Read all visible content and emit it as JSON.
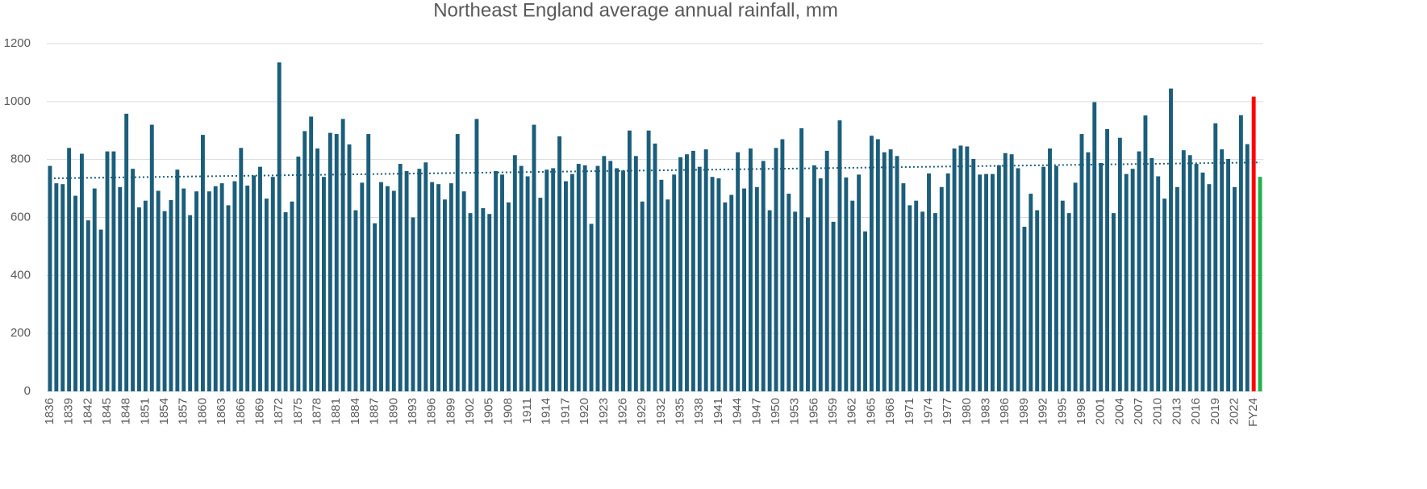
{
  "chart_data": {
    "type": "bar",
    "title": "Northeast England average annual rainfall, mm",
    "categories": [
      "1836",
      null,
      null,
      "1839",
      null,
      null,
      "1842",
      null,
      null,
      "1845",
      null,
      null,
      "1848",
      null,
      null,
      "1851",
      null,
      null,
      "1854",
      null,
      null,
      "1857",
      null,
      null,
      "1860",
      null,
      null,
      "1863",
      null,
      null,
      "1866",
      null,
      null,
      "1869",
      null,
      null,
      "1872",
      null,
      null,
      "1875",
      null,
      null,
      "1878",
      null,
      null,
      "1881",
      null,
      null,
      "1884",
      null,
      null,
      "1887",
      null,
      null,
      "1890",
      null,
      null,
      "1893",
      null,
      null,
      "1896",
      null,
      null,
      "1899",
      null,
      null,
      "1902",
      null,
      null,
      "1905",
      null,
      null,
      "1908",
      null,
      null,
      "1911",
      null,
      null,
      "1914",
      null,
      null,
      "1917",
      null,
      null,
      "1920",
      null,
      null,
      "1923",
      null,
      null,
      "1926",
      null,
      null,
      "1929",
      null,
      null,
      "1932",
      null,
      null,
      "1935",
      null,
      null,
      "1938",
      null,
      null,
      "1941",
      null,
      null,
      "1944",
      null,
      null,
      "1947",
      null,
      null,
      "1950",
      null,
      null,
      "1953",
      null,
      null,
      "1956",
      null,
      null,
      "1959",
      null,
      null,
      "1962",
      null,
      null,
      "1965",
      null,
      null,
      "1968",
      null,
      null,
      "1971",
      null,
      null,
      "1974",
      null,
      null,
      "1977",
      null,
      null,
      "1980",
      null,
      null,
      "1983",
      null,
      null,
      "1986",
      null,
      null,
      "1989",
      null,
      null,
      "1992",
      null,
      null,
      "1995",
      null,
      null,
      "1998",
      null,
      null,
      "2001",
      null,
      null,
      "2004",
      null,
      null,
      "2007",
      null,
      null,
      "2010",
      null,
      null,
      "2013",
      null,
      null,
      "2016",
      null,
      null,
      "2019",
      null,
      null,
      "2022",
      null,
      null,
      "FY24",
      null
    ],
    "values": [
      778,
      718,
      715,
      840,
      675,
      820,
      590,
      700,
      558,
      828,
      828,
      705,
      958,
      768,
      635,
      658,
      920,
      692,
      622,
      660,
      765,
      700,
      608,
      690,
      885,
      690,
      708,
      718,
      642,
      725,
      840,
      710,
      745,
      775,
      665,
      740,
      1135,
      618,
      655,
      810,
      898,
      948,
      838,
      740,
      892,
      888,
      940,
      852,
      625,
      720,
      888,
      580,
      722,
      708,
      692,
      785,
      760,
      600,
      768,
      790,
      722,
      715,
      662,
      718,
      888,
      690,
      615,
      940,
      632,
      612,
      760,
      748,
      652,
      815,
      778,
      742,
      920,
      668,
      765,
      770,
      880,
      725,
      750,
      785,
      780,
      578,
      778,
      812,
      795,
      770,
      762,
      900,
      812,
      655,
      900,
      855,
      730,
      662,
      748,
      808,
      818,
      830,
      775,
      835,
      740,
      735,
      652,
      678,
      825,
      700,
      838,
      705,
      795,
      625,
      840,
      870,
      682,
      620,
      908,
      600,
      780,
      735,
      830,
      585,
      935,
      738,
      658,
      748,
      552,
      882,
      870,
      825,
      835,
      812,
      718,
      642,
      658,
      620,
      752,
      615,
      705,
      752,
      838,
      848,
      845,
      802,
      748,
      750,
      750,
      780,
      822,
      818,
      770,
      568,
      682,
      625,
      775,
      838,
      778,
      658,
      615,
      720,
      888,
      825,
      998,
      788,
      905,
      615,
      875,
      750,
      768,
      828,
      952,
      805,
      742,
      665,
      1045,
      705,
      832,
      815,
      785,
      755,
      715,
      925,
      835,
      802,
      705,
      953,
      853,
      1017,
      740
    ],
    "color": "#1b5e7b",
    "point_colors": {
      "189": "#ff0000",
      "190": "#22b14c"
    },
    "trendline": {
      "start": 735,
      "end": 790,
      "color": "#1b5e7b"
    },
    "ylim": [
      0,
      1200
    ],
    "yticks": [
      0,
      200,
      400,
      600,
      800,
      1000,
      1200
    ],
    "grid": true
  }
}
